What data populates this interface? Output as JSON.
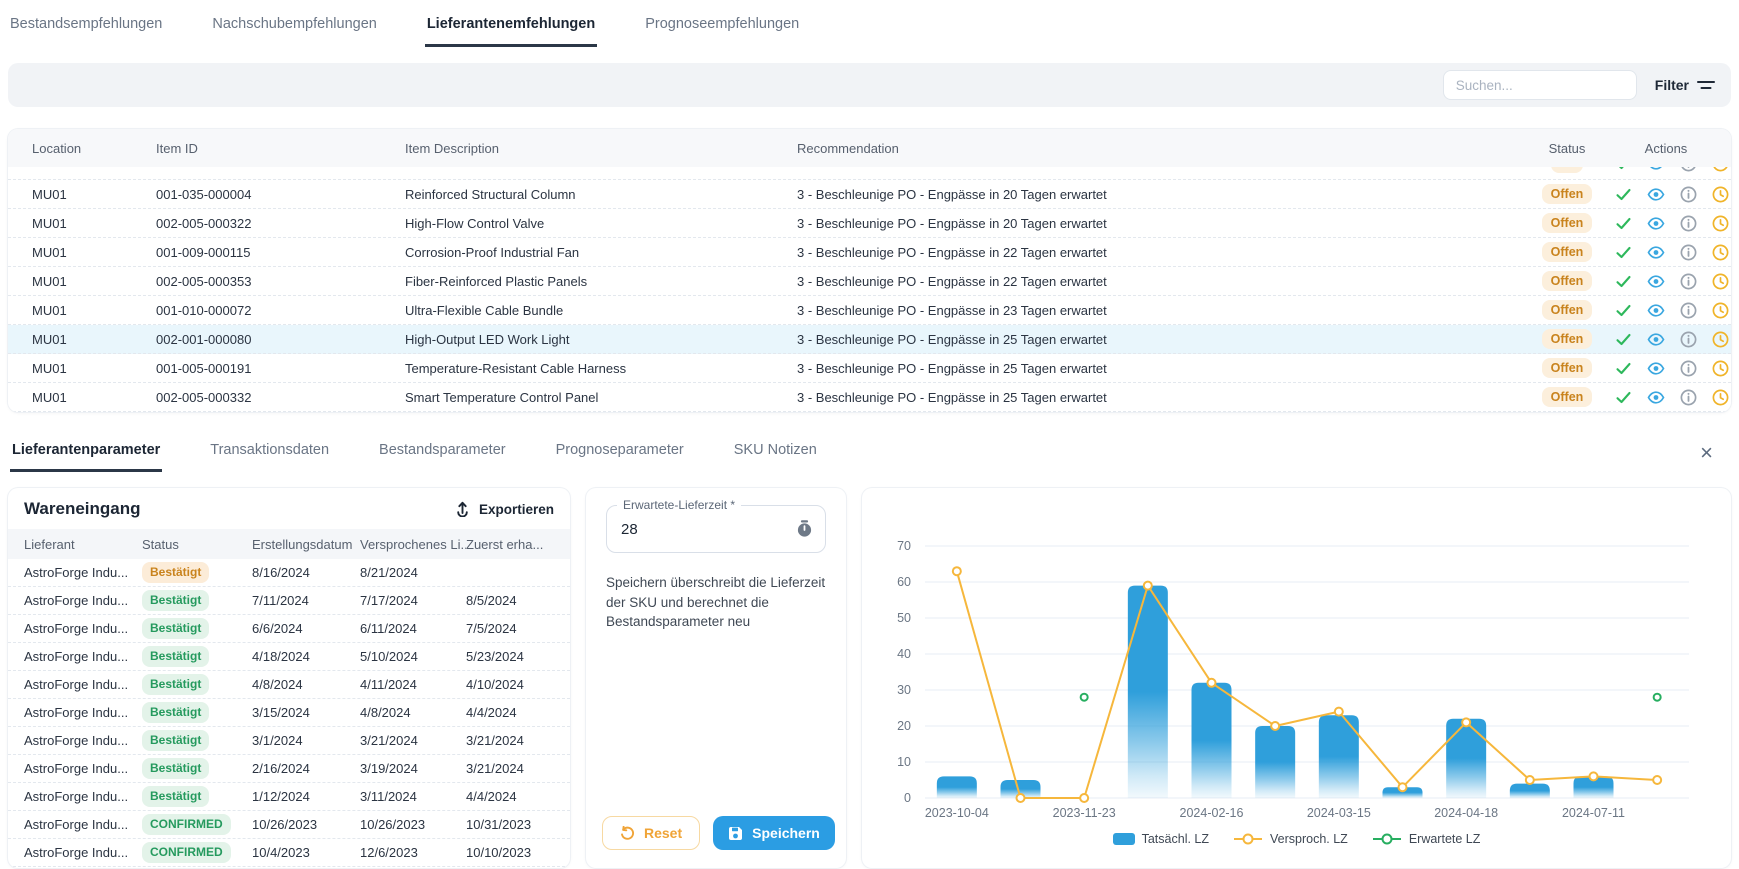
{
  "top_tabs": [
    {
      "id": "bestandsempfehlungen",
      "label": "Bestandsempfehlungen",
      "active": false
    },
    {
      "id": "nachschubempfehlungen",
      "label": "Nachschubempfehlungen",
      "active": false
    },
    {
      "id": "lieferantenemfehlungen",
      "label": "Lieferantenemfehlungen",
      "active": true
    },
    {
      "id": "prognoseempfehlungen",
      "label": "Prognoseempfehlungen",
      "active": false
    }
  ],
  "toolbar": {
    "search_placeholder": "Suchen...",
    "filter_label": "Filter"
  },
  "recommendations_table": {
    "columns": [
      "Location",
      "Item ID",
      "Item Description",
      "Recommendation",
      "Status",
      "Actions"
    ],
    "rows": [
      {
        "location": "MU01",
        "item_id": "001-035-000004",
        "description": "Reinforced Structural Column",
        "recommendation": "3 - Beschleunige PO - Engpässe in 20 Tagen erwartet",
        "status": "Offen",
        "highlighted": false
      },
      {
        "location": "MU01",
        "item_id": "002-005-000322",
        "description": "High-Flow Control Valve",
        "recommendation": "3 - Beschleunige PO - Engpässe in 20 Tagen erwartet",
        "status": "Offen",
        "highlighted": false
      },
      {
        "location": "MU01",
        "item_id": "001-009-000115",
        "description": "Corrosion-Proof Industrial Fan",
        "recommendation": "3 - Beschleunige PO - Engpässe in 22 Tagen erwartet",
        "status": "Offen",
        "highlighted": false
      },
      {
        "location": "MU01",
        "item_id": "002-005-000353",
        "description": "Fiber-Reinforced Plastic Panels",
        "recommendation": "3 - Beschleunige PO - Engpässe in 22 Tagen erwartet",
        "status": "Offen",
        "highlighted": false
      },
      {
        "location": "MU01",
        "item_id": "001-010-000072",
        "description": "Ultra-Flexible Cable Bundle",
        "recommendation": "3 - Beschleunige PO - Engpässe in 23 Tagen erwartet",
        "status": "Offen",
        "highlighted": false
      },
      {
        "location": "MU01",
        "item_id": "002-001-000080",
        "description": "High-Output LED Work Light",
        "recommendation": "3 - Beschleunige PO - Engpässe in 25 Tagen erwartet",
        "status": "Offen",
        "highlighted": true
      },
      {
        "location": "MU01",
        "item_id": "001-005-000191",
        "description": "Temperature-Resistant Cable Harness",
        "recommendation": "3 - Beschleunige PO - Engpässe in 25 Tagen erwartet",
        "status": "Offen",
        "highlighted": false
      },
      {
        "location": "MU01",
        "item_id": "002-005-000332",
        "description": "Smart Temperature Control Panel",
        "recommendation": "3 - Beschleunige PO - Engpässe in 25 Tagen erwartet",
        "status": "Offen",
        "highlighted": false
      }
    ]
  },
  "detail_tabs": [
    {
      "id": "lieferantenparameter",
      "label": "Lieferantenparameter",
      "active": true
    },
    {
      "id": "transaktionsdaten",
      "label": "Transaktionsdaten",
      "active": false
    },
    {
      "id": "bestandsparameter",
      "label": "Bestandsparameter",
      "active": false
    },
    {
      "id": "prognoseparameter",
      "label": "Prognoseparameter",
      "active": false
    },
    {
      "id": "sku-notizen",
      "label": "SKU Notizen",
      "active": false
    }
  ],
  "receipts": {
    "title": "Wareneingang",
    "export_label": "Exportieren",
    "columns": [
      "Lieferant",
      "Status",
      "Erstellungsdatum",
      "Versprochenes Li...",
      "Zuerst erha..."
    ],
    "rows": [
      {
        "supplier": "AstroForge Indu...",
        "status": "Bestätigt",
        "variant": "orange",
        "created": "8/16/2024",
        "promised": "8/21/2024",
        "received": ""
      },
      {
        "supplier": "AstroForge Indu...",
        "status": "Bestätigt",
        "variant": "green",
        "created": "7/11/2024",
        "promised": "7/17/2024",
        "received": "8/5/2024"
      },
      {
        "supplier": "AstroForge Indu...",
        "status": "Bestätigt",
        "variant": "green",
        "created": "6/6/2024",
        "promised": "6/11/2024",
        "received": "7/5/2024"
      },
      {
        "supplier": "AstroForge Indu...",
        "status": "Bestätigt",
        "variant": "green",
        "created": "4/18/2024",
        "promised": "5/10/2024",
        "received": "5/23/2024"
      },
      {
        "supplier": "AstroForge Indu...",
        "status": "Bestätigt",
        "variant": "green",
        "created": "4/8/2024",
        "promised": "4/11/2024",
        "received": "4/10/2024"
      },
      {
        "supplier": "AstroForge Indu...",
        "status": "Bestätigt",
        "variant": "green",
        "created": "3/15/2024",
        "promised": "4/8/2024",
        "received": "4/4/2024"
      },
      {
        "supplier": "AstroForge Indu...",
        "status": "Bestätigt",
        "variant": "green",
        "created": "3/1/2024",
        "promised": "3/21/2024",
        "received": "3/21/2024"
      },
      {
        "supplier": "AstroForge Indu...",
        "status": "Bestätigt",
        "variant": "green",
        "created": "2/16/2024",
        "promised": "3/19/2024",
        "received": "3/21/2024"
      },
      {
        "supplier": "AstroForge Indu...",
        "status": "Bestätigt",
        "variant": "green",
        "created": "1/12/2024",
        "promised": "3/11/2024",
        "received": "4/4/2024"
      },
      {
        "supplier": "AstroForge Indu...",
        "status": "CONFIRMED",
        "variant": "green",
        "created": "10/26/2023",
        "promised": "10/26/2023",
        "received": "10/31/2023"
      },
      {
        "supplier": "AstroForge Indu...",
        "status": "CONFIRMED",
        "variant": "green",
        "created": "10/4/2023",
        "promised": "12/6/2023",
        "received": "10/10/2023"
      }
    ]
  },
  "leadtime": {
    "input_label": "Erwartete-Lieferzeit *",
    "input_value": "28",
    "help_text": "Speichern überschreibt die Lieferzeit der SKU und berechnet die Bestandsparameter neu",
    "reset_label": "Reset",
    "save_label": "Speichern"
  },
  "chart_data": {
    "type": "bar",
    "slots": 12,
    "x_tick_labels": [
      "2023-10-04",
      "2023-11-23",
      "2024-02-16",
      "2024-03-15",
      "2024-04-18",
      "2024-07-11"
    ],
    "tick_slot_indices": [
      0,
      2,
      4,
      6,
      8,
      10
    ],
    "ylim": [
      0,
      70
    ],
    "yticks": [
      0,
      10,
      20,
      30,
      40,
      50,
      60,
      70
    ],
    "grid": true,
    "legend_position": "bottom",
    "series": [
      {
        "name": "Tatsächl. LZ",
        "type": "bar",
        "color": "#2f9fdb",
        "values": [
          6,
          5,
          null,
          59,
          32,
          20,
          23,
          3,
          22,
          4,
          6,
          null
        ]
      },
      {
        "name": "Versproch. LZ",
        "type": "line",
        "color": "#f6b73c",
        "values": [
          63,
          0,
          0,
          59,
          32,
          20,
          24,
          3,
          21,
          5,
          6,
          5
        ]
      },
      {
        "name": "Erwartete LZ",
        "type": "scatter",
        "color": "#27ae60",
        "values": [
          null,
          null,
          28,
          null,
          null,
          null,
          null,
          null,
          null,
          null,
          null,
          28
        ]
      }
    ]
  },
  "colors": {
    "accent_blue": "#2b9de3",
    "bar_blue": "#2f9fdb",
    "line_yellow": "#f6b73c",
    "dot_green": "#27ae60",
    "status_open_bg": "#fcefdc",
    "status_open_text": "#c9831d",
    "badge_green_bg": "#e3f3e9",
    "badge_green_text": "#259a5e",
    "badge_orange_bg": "#fcecd8",
    "badge_orange_text": "#c9831d",
    "reset_orange": "#f0a437",
    "tab_active": "#1c2634",
    "tab_inactive": "#6a7585"
  },
  "icons": {
    "filter": "filter-lines",
    "approve": "check",
    "view": "eye",
    "info": "info-circle",
    "snooze": "clock",
    "close": "x",
    "export": "arrow-up-export",
    "timer": "stopwatch",
    "reset": "rotate-ccw",
    "save": "floppy-disk"
  }
}
